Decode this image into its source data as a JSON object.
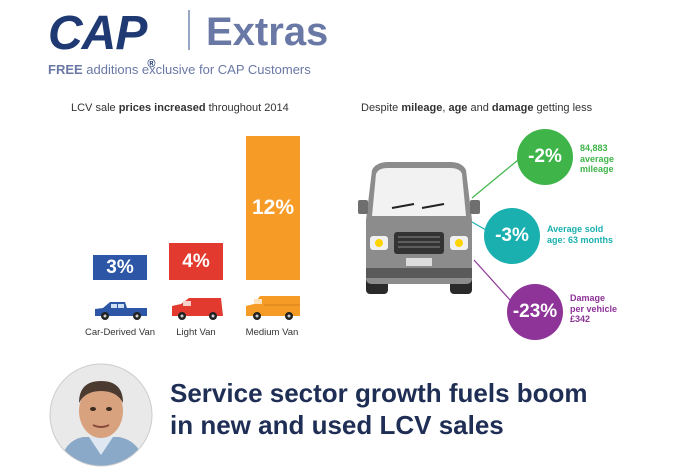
{
  "header": {
    "logo": "CAP",
    "logo_mark": "®",
    "extras": "Extras",
    "tagline_bold": "FREE",
    "tagline_rest": " additions exclusive for CAP Customers"
  },
  "left_panel": {
    "caption_pre": "LCV sale ",
    "caption_bold": "prices increased",
    "caption_post": " throughout 2014"
  },
  "right_panel": {
    "caption_pre": "Despite ",
    "caption_b1": "mileage",
    "caption_mid1": ", ",
    "caption_b2": "age",
    "caption_mid2": " and ",
    "caption_b3": "damage",
    "caption_post": " getting less",
    "circles": [
      {
        "value": "-2%",
        "line1": "84,883",
        "line2": "average",
        "line3": "mileage",
        "color": "#3fb549"
      },
      {
        "value": "-3%",
        "line1": "Average sold",
        "line2": "age: 63 months",
        "line3": "",
        "color": "#1bb0b0"
      },
      {
        "value": "-23%",
        "line1": "Damage",
        "line2": "per vehicle",
        "line3": "£342",
        "color": "#8e3398"
      }
    ]
  },
  "chart_data": {
    "type": "bar",
    "categories": [
      "Car-Derived Van",
      "Light Van",
      "Medium Van"
    ],
    "values": [
      3,
      4,
      12
    ],
    "value_labels": [
      "3%",
      "4%",
      "12%"
    ],
    "colors": [
      "#2d57a6",
      "#e23a2e",
      "#f59b26"
    ]
  },
  "headline": {
    "line1": "Service sector growth fuels boom",
    "line2": "in new and used LCV sales"
  },
  "icons": [
    "car-derived-van-icon",
    "light-van-icon",
    "medium-van-icon",
    "van-front-icon",
    "person-photo"
  ]
}
